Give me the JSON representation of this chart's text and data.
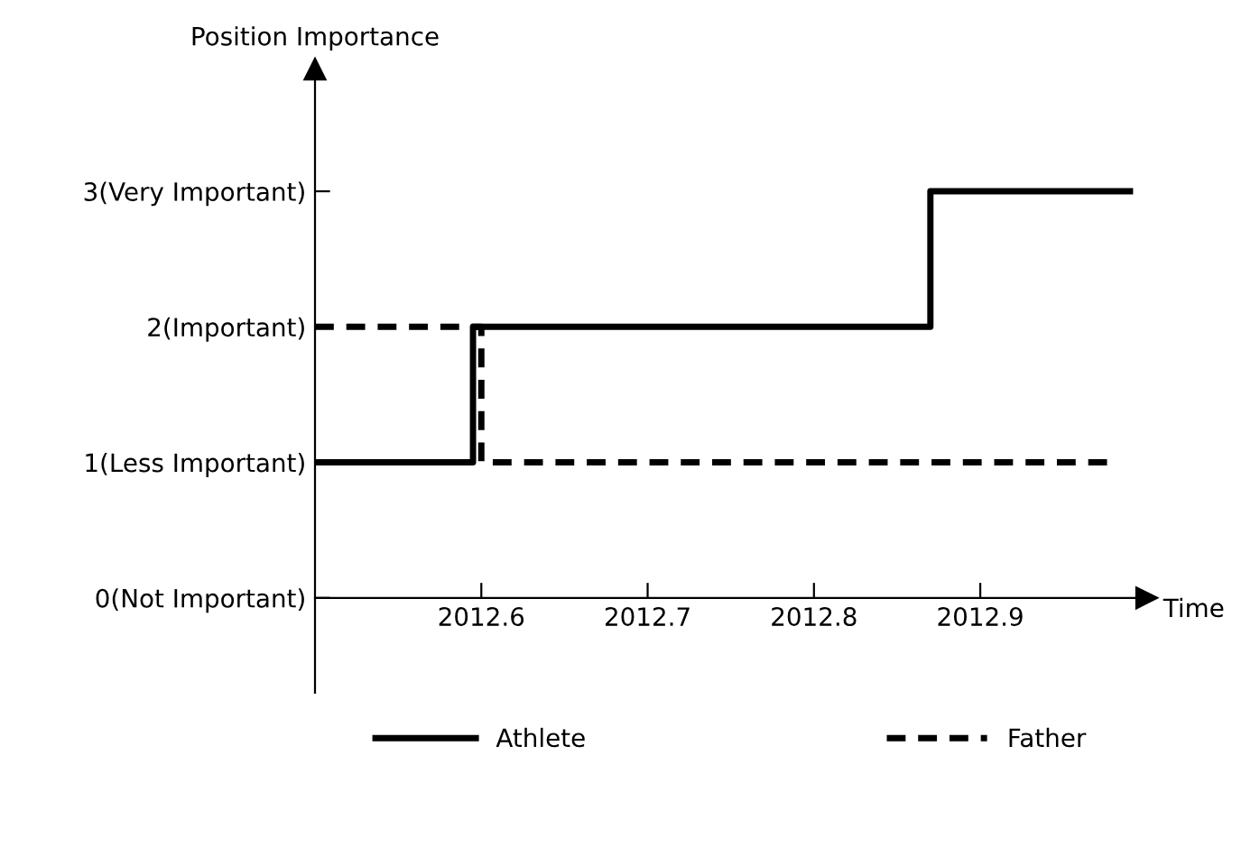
{
  "chart_data": {
    "type": "step",
    "ylabel": "Position Importance",
    "xlabel": "Time",
    "xlim": [
      2012.5,
      2013.0
    ],
    "ylim": [
      -0.7,
      3.9
    ],
    "xticks": [
      2012.6,
      2012.7,
      2012.8,
      2012.9
    ],
    "yticks": [
      {
        "value": 0,
        "label": "0(Not Important)"
      },
      {
        "value": 1,
        "label": "1(Less Important)"
      },
      {
        "value": 2,
        "label": "2(Important)"
      },
      {
        "value": 3,
        "label": "3(Very Important)"
      }
    ],
    "series": [
      {
        "name": "Athlete",
        "color": "#000000",
        "line_style": "solid",
        "x": [
          2012.5,
          2012.595,
          2012.87,
          2012.99
        ],
        "values": [
          1,
          2,
          3,
          3
        ]
      },
      {
        "name": "Father",
        "color": "#000000",
        "line_style": "dashed",
        "x": [
          2012.5,
          2012.6,
          2012.98
        ],
        "values": [
          2,
          1,
          1
        ]
      }
    ],
    "legend": "bottom",
    "grid": false,
    "marker": "none"
  }
}
